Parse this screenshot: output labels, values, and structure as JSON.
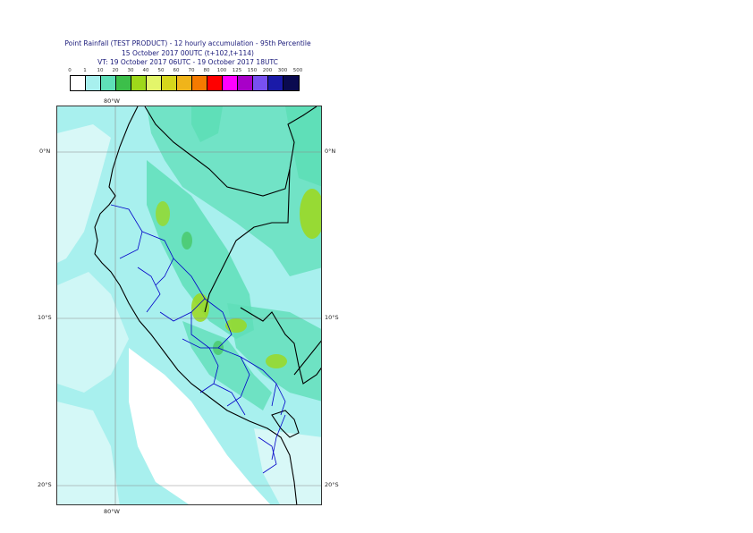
{
  "header": {
    "title_line1": "Point Rainfall (TEST PRODUCT) - 12 hourly accumulation - 95th Percentile",
    "title_line2": "15 October 2017 00UTC (t+102,t+114)",
    "title_line3": "VT: 19 October 2017 06UTC - 19 October 2017 18UTC"
  },
  "legend": {
    "labels": [
      "0",
      "1",
      "10",
      "20",
      "30",
      "40",
      "50",
      "60",
      "70",
      "80",
      "100",
      "125",
      "150",
      "200",
      "300",
      "500"
    ],
    "colors": [
      "#ffffff",
      "#a8f0ee",
      "#5fdfb8",
      "#3cbf4a",
      "#9ed81a",
      "#e3f56a",
      "#d6d61c",
      "#f0b41a",
      "#f57a00",
      "#ff0000",
      "#ff00ff",
      "#a800c8",
      "#7850f0",
      "#1a1aa8",
      "#0a0a50"
    ]
  },
  "map": {
    "lat_labels": [
      "0°N",
      "10°S",
      "20°S"
    ],
    "lon_labels": [
      "80°W",
      "80°W"
    ],
    "colors": {
      "sea": "#a8f0ee",
      "light_rain": "#a8f0ee",
      "moderate": "#5fdfb8",
      "heavy": "#9ed81a",
      "border": "#000000",
      "region_border": "#0000c8",
      "grid": "#8a8a8a"
    }
  }
}
